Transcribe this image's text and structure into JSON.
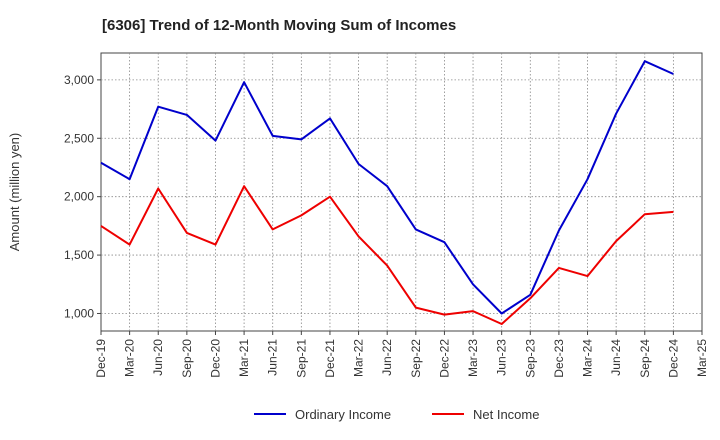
{
  "chart_data": {
    "type": "line",
    "title": "[6306]  Trend of 12-Month Moving Sum of Incomes",
    "xlabel": "",
    "ylabel": "Amount (million yen)",
    "ylim": [
      850,
      3230
    ],
    "yticks": [
      1000,
      1500,
      2000,
      2500,
      3000
    ],
    "ytick_labels": [
      "1,000",
      "1,500",
      "2,000",
      "2,500",
      "3,000"
    ],
    "categories": [
      "Dec-19",
      "Mar-20",
      "Jun-20",
      "Sep-20",
      "Dec-20",
      "Mar-21",
      "Jun-21",
      "Sep-21",
      "Dec-21",
      "Mar-22",
      "Jun-22",
      "Sep-22",
      "Dec-22",
      "Mar-23",
      "Jun-23",
      "Sep-23",
      "Dec-23",
      "Mar-24",
      "Jun-24",
      "Sep-24",
      "Dec-24",
      "Mar-25"
    ],
    "grid": true,
    "legend_position": "bottom",
    "series": [
      {
        "name": "Ordinary Income",
        "color": "#0000cc",
        "values": [
          2290,
          2150,
          2770,
          2700,
          2480,
          2980,
          2520,
          2490,
          2670,
          2280,
          2090,
          1720,
          1610,
          1250,
          1000,
          1160,
          1710,
          2150,
          2710,
          3160,
          3050,
          null
        ]
      },
      {
        "name": "Net Income",
        "color": "#ee0000",
        "values": [
          1750,
          1590,
          2070,
          1690,
          1590,
          2090,
          1720,
          1840,
          2000,
          1660,
          1410,
          1050,
          990,
          1020,
          910,
          1130,
          1390,
          1320,
          1620,
          1850,
          1870,
          null
        ]
      }
    ]
  }
}
